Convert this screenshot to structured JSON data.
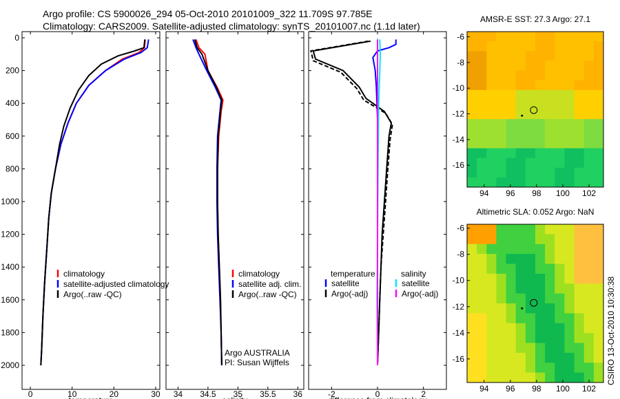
{
  "title": {
    "line1": "Argo profile: CS 5900026_294 05-Oct-2010 20101009_322 11.709S 97.785E",
    "line2": "Climatology: CARS2009. Satellite-adjusted climatology: synTS_20101007.nc (1.1d later)"
  },
  "stamp": "CSIRO 13-Oct-2010 10:30:38",
  "colors": {
    "clim": "#ff0000",
    "sat": "#0000ff",
    "argo": "#000000",
    "sal_sat": "#00e5ff",
    "sal_argo": "#ff00ff"
  },
  "chart_data": [
    {
      "type": "line",
      "id": "temperature",
      "xlabel": "temperature",
      "ylabel": "",
      "xlim": [
        -2,
        31
      ],
      "ylim": [
        2050,
        0
      ],
      "xticks": [
        0,
        10,
        20,
        30
      ],
      "yticks": [
        0,
        200,
        400,
        600,
        800,
        1000,
        1200,
        1400,
        1600,
        1800,
        2000
      ],
      "legend": [
        "climatology",
        "satellite-adjusted climatology",
        "Argo(..raw -QC)"
      ],
      "series": [
        {
          "name": "climatology",
          "color": "#ff0000",
          "points": [
            [
              27.5,
              10
            ],
            [
              27.3,
              60
            ],
            [
              26,
              90
            ],
            [
              22,
              130
            ],
            [
              18,
              200
            ],
            [
              14,
              290
            ],
            [
              11,
              400
            ],
            [
              9,
              520
            ],
            [
              7.3,
              650
            ],
            [
              6,
              800
            ],
            [
              5,
              950
            ],
            [
              4.4,
              1100
            ],
            [
              3.9,
              1300
            ],
            [
              3.4,
              1500
            ],
            [
              3.0,
              1700
            ],
            [
              2.7,
              1900
            ],
            [
              2.5,
              2000
            ]
          ]
        },
        {
          "name": "satellite-adjusted climatology",
          "color": "#0000ff",
          "points": [
            [
              28.3,
              10
            ],
            [
              28.0,
              60
            ],
            [
              26.5,
              90
            ],
            [
              22.5,
              130
            ],
            [
              18,
              200
            ],
            [
              14,
              290
            ],
            [
              11,
              400
            ],
            [
              9,
              520
            ],
            [
              7.3,
              650
            ],
            [
              6,
              800
            ],
            [
              5,
              950
            ],
            [
              4.4,
              1100
            ],
            [
              3.9,
              1300
            ],
            [
              3.4,
              1500
            ],
            [
              3.0,
              1700
            ],
            [
              2.7,
              1900
            ],
            [
              2.5,
              2000
            ]
          ]
        },
        {
          "name": "Argo(..raw -QC)",
          "color": "#000000",
          "points": [
            [
              27.4,
              10
            ],
            [
              27.2,
              60
            ],
            [
              25,
              80
            ],
            [
              21,
              110
            ],
            [
              17,
              160
            ],
            [
              14,
              230
            ],
            [
              11.5,
              320
            ],
            [
              9.5,
              430
            ],
            [
              8,
              540
            ],
            [
              7,
              650
            ],
            [
              6,
              800
            ],
            [
              5,
              950
            ],
            [
              4.4,
              1100
            ],
            [
              3.9,
              1300
            ],
            [
              3.4,
              1500
            ],
            [
              3.0,
              1700
            ],
            [
              2.7,
              1900
            ],
            [
              2.5,
              2000
            ]
          ]
        }
      ]
    },
    {
      "type": "line",
      "id": "salinity",
      "xlabel": "salinity",
      "ylabel": "",
      "xlim": [
        33.8,
        36.1
      ],
      "ylim": [
        2050,
        0
      ],
      "xticks": [
        34,
        34.5,
        35,
        35.5,
        36
      ],
      "legend": [
        "climatology",
        "satellite adj. clim.",
        "Argo(..raw -QC)"
      ],
      "annotations": [
        "Argo AUSTRALIA",
        "PI: Susan Wijffels"
      ],
      "series": [
        {
          "name": "climatology",
          "color": "#ff0000",
          "points": [
            [
              34.3,
              10
            ],
            [
              34.35,
              60
            ],
            [
              34.45,
              100
            ],
            [
              34.5,
              200
            ],
            [
              34.65,
              300
            ],
            [
              34.75,
              380
            ],
            [
              34.72,
              450
            ],
            [
              34.68,
              600
            ],
            [
              34.66,
              800
            ],
            [
              34.66,
              1000
            ],
            [
              34.67,
              1200
            ],
            [
              34.69,
              1400
            ],
            [
              34.71,
              1600
            ],
            [
              34.72,
              1800
            ],
            [
              34.73,
              2000
            ]
          ]
        },
        {
          "name": "satellite adj. clim.",
          "color": "#0000ff",
          "points": [
            [
              34.25,
              10
            ],
            [
              34.3,
              60
            ],
            [
              34.35,
              100
            ],
            [
              34.48,
              200
            ],
            [
              34.62,
              300
            ],
            [
              34.72,
              380
            ],
            [
              34.7,
              450
            ],
            [
              34.66,
              600
            ],
            [
              34.65,
              800
            ],
            [
              34.65,
              1000
            ],
            [
              34.66,
              1200
            ],
            [
              34.68,
              1400
            ],
            [
              34.7,
              1600
            ],
            [
              34.72,
              1800
            ],
            [
              34.73,
              2000
            ]
          ]
        },
        {
          "name": "Argo(..raw -QC)",
          "color": "#000000",
          "points": [
            [
              34.28,
              10
            ],
            [
              34.32,
              60
            ],
            [
              34.4,
              100
            ],
            [
              34.5,
              200
            ],
            [
              34.64,
              300
            ],
            [
              34.73,
              380
            ],
            [
              34.71,
              450
            ],
            [
              34.67,
              600
            ],
            [
              34.66,
              800
            ],
            [
              34.66,
              1000
            ],
            [
              34.67,
              1200
            ],
            [
              34.69,
              1400
            ],
            [
              34.71,
              1600
            ],
            [
              34.72,
              1800
            ],
            [
              34.73,
              2000
            ]
          ]
        }
      ]
    },
    {
      "type": "line",
      "id": "difference",
      "xlabel": "difference from climatology",
      "ylabel": "",
      "xlim": [
        -3,
        3
      ],
      "ylim": [
        2050,
        0
      ],
      "xticks": [
        -2,
        0,
        2
      ],
      "legend_temperature": {
        "header": "temperature",
        "items": [
          "satellite",
          "Argo(-adj)"
        ]
      },
      "legend_salinity": {
        "header": "salinity",
        "items": [
          "satellite",
          "Argo(-adj)"
        ]
      },
      "series": [
        {
          "name": "temperature satellite",
          "color": "#0000ff",
          "points": [
            [
              0.8,
              10
            ],
            [
              0.8,
              40
            ],
            [
              0.5,
              60
            ],
            [
              0,
              80
            ],
            [
              -0.2,
              120
            ],
            [
              -0.1,
              200
            ],
            [
              -0.05,
              300
            ],
            [
              0,
              500
            ],
            [
              0,
              2000
            ]
          ]
        },
        {
          "name": "temperature Argo(-adj)",
          "color": "#000000",
          "points": [
            [
              -0.3,
              20
            ],
            [
              -2.8,
              80
            ],
            [
              -2.7,
              130
            ],
            [
              -1.5,
              200
            ],
            [
              -0.8,
              300
            ],
            [
              -0.5,
              370
            ],
            [
              0.3,
              450
            ],
            [
              0.6,
              520
            ],
            [
              0.5,
              600
            ],
            [
              0.4,
              800
            ],
            [
              0.3,
              1000
            ],
            [
              0.2,
              1200
            ],
            [
              0.15,
              1400
            ],
            [
              0.1,
              1600
            ],
            [
              0.05,
              1800
            ],
            [
              0,
              2000
            ]
          ]
        },
        {
          "name": "temperature Argo dashed",
          "color": "#000000",
          "dashed": true,
          "points": [
            [
              -0.4,
              20
            ],
            [
              -2.9,
              80
            ],
            [
              -2.8,
              140
            ],
            [
              -1.6,
              210
            ],
            [
              -0.9,
              310
            ],
            [
              -0.6,
              380
            ],
            [
              0.35,
              460
            ],
            [
              0.65,
              530
            ],
            [
              0.55,
              620
            ],
            [
              0.45,
              800
            ],
            [
              0.35,
              1000
            ],
            [
              0.25,
              1200
            ],
            [
              0.15,
              1400
            ],
            [
              0.1,
              1600
            ],
            [
              0.05,
              1800
            ],
            [
              0,
              2000
            ]
          ]
        },
        {
          "name": "salinity satellite",
          "color": "#00e5ff",
          "points": [
            [
              0.1,
              10
            ],
            [
              0.12,
              100
            ],
            [
              0.1,
              200
            ],
            [
              0.05,
              400
            ],
            [
              0.02,
              800
            ],
            [
              0,
              1200
            ],
            [
              -0.02,
              1600
            ],
            [
              0,
              2000
            ]
          ]
        },
        {
          "name": "salinity Argo(-adj)",
          "color": "#ff00ff",
          "points": [
            [
              0,
              10
            ],
            [
              0,
              2000
            ]
          ]
        }
      ]
    }
  ],
  "maps": [
    {
      "title": "AMSR-E SST: 27.3 Argo: 27.1",
      "xticks": [
        "94",
        "96",
        "98",
        "100",
        "102"
      ],
      "yticks": [
        "-6",
        "-8",
        "-10",
        "-12",
        "-14",
        "-16"
      ]
    },
    {
      "title": "Altimetric SLA: 0.052 Argo: NaN",
      "xticks": [
        "94",
        "96",
        "98",
        "100",
        "102"
      ],
      "yticks": [
        "-6",
        "-8",
        "-10",
        "-12",
        "-14",
        "-16"
      ]
    }
  ]
}
